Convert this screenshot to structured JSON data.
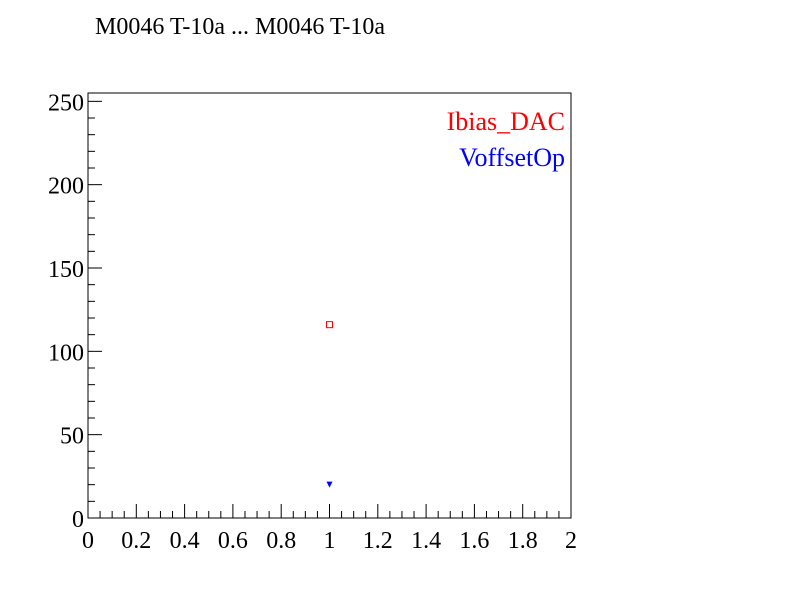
{
  "chart_data": {
    "type": "scatter",
    "title": "M0046 T-10a ... M0046 T-10a",
    "xlabel": "",
    "ylabel": "",
    "xlim": [
      0,
      2
    ],
    "ylim": [
      0,
      255
    ],
    "x_ticks": [
      "0",
      "0.2",
      "0.4",
      "0.6",
      "0.8",
      "1",
      "1.2",
      "1.4",
      "1.6",
      "1.8",
      "2"
    ],
    "y_ticks": [
      "0",
      "50",
      "100",
      "150",
      "200",
      "250"
    ],
    "x_minor_step": 0.05,
    "y_minor_step": 10,
    "grid": false,
    "legend_position": "top-right",
    "series": [
      {
        "name": "Ibias_DAC",
        "color": "#ff0000",
        "marker": "open-square",
        "points": [
          {
            "x": 1,
            "y": 116
          }
        ]
      },
      {
        "name": "VoffsetOp",
        "color": "#0000ff",
        "marker": "filled-triangle-down",
        "points": [
          {
            "x": 1,
            "y": 20
          }
        ]
      }
    ]
  }
}
